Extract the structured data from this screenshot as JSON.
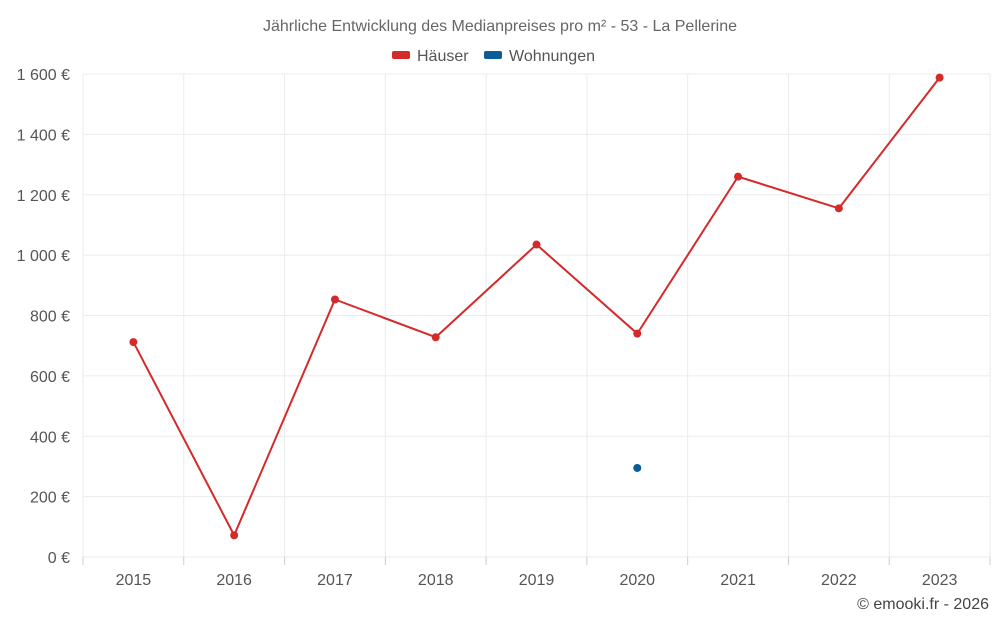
{
  "chart_data": {
    "type": "line",
    "title": "Jährliche Entwicklung des Medianpreises pro m² - 53 - La Pellerine",
    "categories": [
      "2015",
      "2016",
      "2017",
      "2018",
      "2019",
      "2020",
      "2021",
      "2022",
      "2023"
    ],
    "series": [
      {
        "name": "Häuser",
        "color": "#d42a2a",
        "values": [
          712,
          72,
          853,
          728,
          1035,
          740,
          1260,
          1155,
          1588
        ]
      },
      {
        "name": "Wohnungen",
        "color": "#0a5c99",
        "values": [
          null,
          null,
          null,
          null,
          null,
          295,
          null,
          null,
          null
        ]
      }
    ],
    "ylim": [
      0,
      1600
    ],
    "yticks": [
      0,
      200,
      400,
      600,
      800,
      1000,
      1200,
      1400,
      1600
    ],
    "ytick_labels": [
      "0 €",
      "200 €",
      "400 €",
      "600 €",
      "800 €",
      "1 000 €",
      "1 200 €",
      "1 400 €",
      "1 600 €"
    ],
    "grid": true,
    "legend_position": "top-center"
  },
  "credit": "© emooki.fr - 2026"
}
